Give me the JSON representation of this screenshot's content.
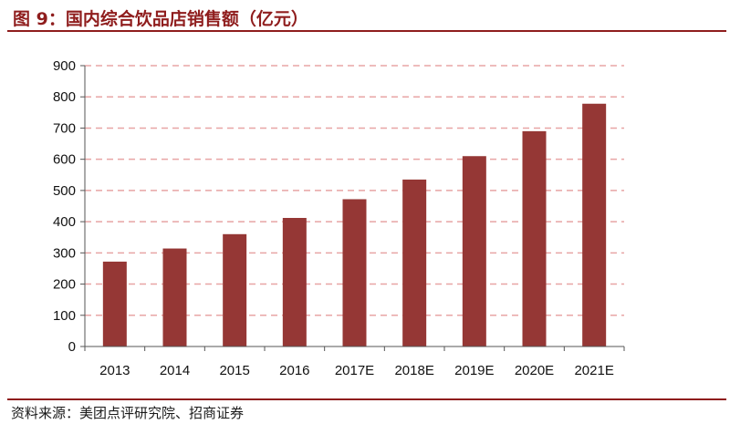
{
  "figure": {
    "title": "图 9：国内综合饮品店销售额（亿元）",
    "source": "资料来源：美团点评研究院、招商证券"
  },
  "colors": {
    "bar": "#953735",
    "accent": "#8f1d1d",
    "grid": "#e8a5a5"
  },
  "chart_data": {
    "type": "bar",
    "categories": [
      "2013",
      "2014",
      "2015",
      "2016",
      "2017E",
      "2018E",
      "2019E",
      "2020E",
      "2021E"
    ],
    "values": [
      272,
      314,
      360,
      412,
      472,
      535,
      610,
      690,
      778
    ],
    "ylim": [
      0,
      900
    ],
    "yticks": [
      "0",
      "100",
      "200",
      "300",
      "400",
      "500",
      "600",
      "700",
      "800",
      "900"
    ],
    "grid": true,
    "legend": "none"
  }
}
